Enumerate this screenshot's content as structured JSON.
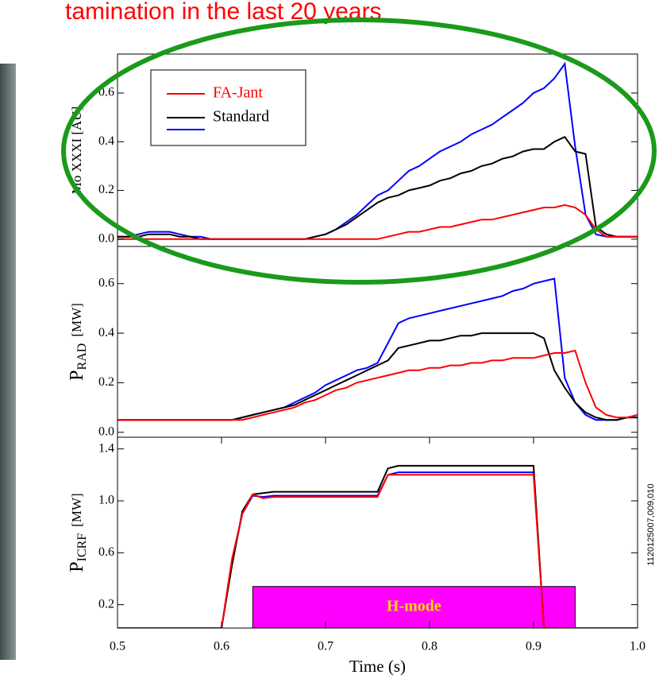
{
  "title": "tamination in the last 20 years",
  "side_note": "1120125007,009,010",
  "chart_data": [
    {
      "type": "line",
      "ylabel": "Mo XXXI [AU]",
      "xlim": [
        0.5,
        1.0
      ],
      "ylim": [
        -0.03,
        0.76
      ],
      "yticks": [
        {
          "value": 0,
          "label": "0.0"
        },
        0.2,
        0.4,
        0.6
      ],
      "legend": "upper left",
      "x": [
        0.5,
        0.51,
        0.52,
        0.53,
        0.54,
        0.55,
        0.56,
        0.57,
        0.58,
        0.59,
        0.6,
        0.61,
        0.62,
        0.63,
        0.64,
        0.65,
        0.66,
        0.67,
        0.68,
        0.69,
        0.7,
        0.71,
        0.72,
        0.73,
        0.74,
        0.75,
        0.76,
        0.77,
        0.78,
        0.79,
        0.8,
        0.81,
        0.82,
        0.83,
        0.84,
        0.85,
        0.86,
        0.87,
        0.88,
        0.89,
        0.9,
        0.91,
        0.92,
        0.93,
        0.94,
        0.95,
        0.96,
        0.97,
        0.98,
        0.99,
        1.0
      ],
      "series": [
        {
          "name": "FA-Jant",
          "color": "#ff0000",
          "values": [
            0,
            0,
            0,
            0,
            0,
            0,
            0,
            0,
            0,
            0,
            0,
            0,
            0,
            0,
            0,
            0,
            0,
            0,
            0,
            0,
            0,
            0,
            0,
            0,
            0,
            0,
            0.01,
            0.02,
            0.03,
            0.03,
            0.04,
            0.05,
            0.05,
            0.06,
            0.07,
            0.08,
            0.08,
            0.09,
            0.1,
            0.11,
            0.12,
            0.13,
            0.13,
            0.14,
            0.13,
            0.1,
            0.04,
            0.01,
            0.01,
            0.01,
            0.01
          ]
        },
        {
          "name": "Standard",
          "color": "#000000",
          "values": [
            0.01,
            0.01,
            0.01,
            0.02,
            0.02,
            0.02,
            0.01,
            0.01,
            0,
            0,
            0,
            0,
            0,
            0,
            0,
            0,
            0,
            0,
            0,
            0.01,
            0.02,
            0.04,
            0.06,
            0.09,
            0.12,
            0.15,
            0.17,
            0.18,
            0.2,
            0.21,
            0.22,
            0.24,
            0.25,
            0.27,
            0.28,
            0.3,
            0.31,
            0.33,
            0.34,
            0.36,
            0.37,
            0.37,
            0.4,
            0.42,
            0.36,
            0.35,
            0.05,
            0.02,
            0.01,
            0.01,
            0.01
          ]
        },
        {
          "color": "#0000ff",
          "values": [
            0.01,
            0.01,
            0.02,
            0.03,
            0.03,
            0.03,
            0.02,
            0.01,
            0.01,
            0,
            0,
            0,
            0,
            0,
            0,
            0,
            0,
            0,
            0,
            0.01,
            0.02,
            0.04,
            0.07,
            0.1,
            0.14,
            0.18,
            0.2,
            0.24,
            0.28,
            0.3,
            0.33,
            0.36,
            0.38,
            0.4,
            0.43,
            0.45,
            0.47,
            0.5,
            0.53,
            0.56,
            0.6,
            0.62,
            0.66,
            0.72,
            0.38,
            0.1,
            0.02,
            0.01,
            0.01,
            0.01,
            0.01
          ]
        }
      ]
    },
    {
      "type": "line",
      "ylabel": "P",
      "ylabel_sub": "RAD",
      "ylabel_unit": "[MW]",
      "xlim": [
        0.5,
        1.0
      ],
      "ylim": [
        -0.02,
        0.75
      ],
      "yticks": [
        {
          "value": 0,
          "label": "0.0"
        },
        0.2,
        0.4,
        0.6
      ],
      "x": [
        0.5,
        0.51,
        0.52,
        0.53,
        0.54,
        0.55,
        0.56,
        0.57,
        0.58,
        0.59,
        0.6,
        0.61,
        0.62,
        0.63,
        0.64,
        0.65,
        0.66,
        0.67,
        0.68,
        0.69,
        0.7,
        0.71,
        0.72,
        0.73,
        0.74,
        0.75,
        0.76,
        0.77,
        0.78,
        0.79,
        0.8,
        0.81,
        0.82,
        0.83,
        0.84,
        0.85,
        0.86,
        0.87,
        0.88,
        0.89,
        0.9,
        0.91,
        0.92,
        0.93,
        0.94,
        0.95,
        0.96,
        0.97,
        0.98,
        0.99,
        1.0
      ],
      "series": [
        {
          "color": "#ff0000",
          "values": [
            0.05,
            0.05,
            0.05,
            0.05,
            0.05,
            0.05,
            0.05,
            0.05,
            0.05,
            0.05,
            0.05,
            0.05,
            0.05,
            0.06,
            0.07,
            0.08,
            0.09,
            0.1,
            0.12,
            0.13,
            0.15,
            0.17,
            0.18,
            0.2,
            0.21,
            0.22,
            0.23,
            0.24,
            0.25,
            0.25,
            0.26,
            0.26,
            0.27,
            0.27,
            0.28,
            0.28,
            0.29,
            0.29,
            0.3,
            0.3,
            0.3,
            0.31,
            0.32,
            0.32,
            0.33,
            0.2,
            0.1,
            0.07,
            0.06,
            0.06,
            0.07
          ]
        },
        {
          "color": "#000000",
          "values": [
            0.05,
            0.05,
            0.05,
            0.05,
            0.05,
            0.05,
            0.05,
            0.05,
            0.05,
            0.05,
            0.05,
            0.05,
            0.06,
            0.07,
            0.08,
            0.09,
            0.1,
            0.11,
            0.13,
            0.15,
            0.17,
            0.19,
            0.21,
            0.23,
            0.25,
            0.27,
            0.29,
            0.34,
            0.35,
            0.36,
            0.37,
            0.37,
            0.38,
            0.39,
            0.39,
            0.4,
            0.4,
            0.4,
            0.4,
            0.4,
            0.4,
            0.38,
            0.25,
            0.18,
            0.12,
            0.08,
            0.06,
            0.05,
            0.05,
            0.06,
            0.06
          ]
        },
        {
          "color": "#0000ff",
          "values": [
            0.05,
            0.05,
            0.05,
            0.05,
            0.05,
            0.05,
            0.05,
            0.05,
            0.05,
            0.05,
            0.05,
            0.05,
            0.06,
            0.07,
            0.08,
            0.09,
            0.1,
            0.12,
            0.14,
            0.16,
            0.19,
            0.21,
            0.23,
            0.25,
            0.26,
            0.28,
            0.36,
            0.44,
            0.46,
            0.47,
            0.48,
            0.49,
            0.5,
            0.51,
            0.52,
            0.53,
            0.54,
            0.55,
            0.57,
            0.58,
            0.6,
            0.61,
            0.62,
            0.22,
            0.12,
            0.07,
            0.05,
            0.05,
            0.05,
            0.06,
            0.06
          ]
        }
      ]
    },
    {
      "type": "line",
      "ylabel": "P",
      "ylabel_sub": "ICRF",
      "ylabel_unit": "[MW]",
      "xlabel": "Time (s)",
      "xlim": [
        0.5,
        1.0
      ],
      "ylim": [
        0.02,
        1.49
      ],
      "xticks": [
        0.5,
        0.6,
        0.7,
        0.8,
        0.9,
        {
          "value": 1,
          "label": "1.0"
        }
      ],
      "yticks": [
        0.2,
        0.6,
        {
          "value": 1,
          "label": "1.0"
        },
        1.4
      ],
      "span": {
        "label": "H-mode",
        "x": [
          0.63,
          0.94
        ],
        "y": [
          0.02,
          0.34
        ],
        "color": "#ff00ff",
        "text_color": "#ffd700"
      },
      "x": [
        0.5,
        0.51,
        0.52,
        0.53,
        0.54,
        0.55,
        0.56,
        0.57,
        0.58,
        0.59,
        0.6,
        0.61,
        0.62,
        0.63,
        0.64,
        0.65,
        0.66,
        0.67,
        0.68,
        0.69,
        0.7,
        0.71,
        0.72,
        0.73,
        0.74,
        0.75,
        0.76,
        0.77,
        0.78,
        0.79,
        0.8,
        0.81,
        0.82,
        0.83,
        0.84,
        0.85,
        0.86,
        0.87,
        0.88,
        0.89,
        0.9,
        0.91,
        0.92,
        0.93,
        0.94,
        0.95,
        0.96,
        0.97,
        0.98,
        0.99,
        1.0
      ],
      "series": [
        {
          "color": "#ff0000",
          "values": [
            0.02,
            0.02,
            0.02,
            0.02,
            0.02,
            0.02,
            0.02,
            0.02,
            0.02,
            0.02,
            0.02,
            0.55,
            0.9,
            1.05,
            1.02,
            1.03,
            1.03,
            1.03,
            1.03,
            1.03,
            1.03,
            1.03,
            1.03,
            1.03,
            1.03,
            1.03,
            1.2,
            1.2,
            1.2,
            1.2,
            1.2,
            1.2,
            1.2,
            1.2,
            1.2,
            1.2,
            1.2,
            1.2,
            1.2,
            1.2,
            1.2,
            0.02,
            0.02,
            0.02,
            0.02,
            0.02,
            0.02,
            0.02,
            0.02,
            0.02,
            0.02
          ]
        },
        {
          "color": "#000000",
          "values": [
            0.02,
            0.02,
            0.02,
            0.02,
            0.02,
            0.02,
            0.02,
            0.02,
            0.02,
            0.02,
            0.02,
            0.5,
            0.92,
            1.05,
            1.06,
            1.07,
            1.07,
            1.07,
            1.07,
            1.07,
            1.07,
            1.07,
            1.07,
            1.07,
            1.07,
            1.07,
            1.25,
            1.27,
            1.27,
            1.27,
            1.27,
            1.27,
            1.27,
            1.27,
            1.27,
            1.27,
            1.27,
            1.27,
            1.27,
            1.27,
            1.27,
            0.02,
            0.02,
            0.02,
            0.02,
            0.02,
            0.02,
            0.02,
            0.02,
            0.02,
            0.02
          ]
        },
        {
          "color": "#0000ff",
          "values": [
            0.02,
            0.02,
            0.02,
            0.02,
            0.02,
            0.02,
            0.02,
            0.02,
            0.02,
            0.02,
            0.02,
            0.52,
            0.9,
            1.04,
            1.03,
            1.04,
            1.04,
            1.04,
            1.04,
            1.04,
            1.04,
            1.04,
            1.04,
            1.04,
            1.04,
            1.04,
            1.2,
            1.22,
            1.22,
            1.22,
            1.22,
            1.22,
            1.22,
            1.22,
            1.22,
            1.22,
            1.22,
            1.22,
            1.22,
            1.22,
            1.22,
            0.02,
            0.02,
            0.02,
            0.02,
            0.02,
            0.02,
            0.02,
            0.02,
            0.02,
            0.02
          ]
        }
      ]
    }
  ]
}
